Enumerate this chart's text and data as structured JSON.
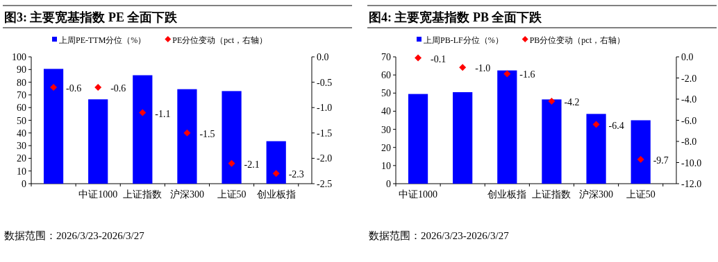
{
  "chart_data": [
    {
      "type": "bar",
      "title": "图3:  主要宽基指数 PE 全面下跌",
      "categories": [
        null,
        "中证1000",
        "上证指数",
        "沪深300",
        "上证50",
        "创业板指"
      ],
      "series": [
        {
          "name": "上周PE-TTM分位（%）",
          "color": "#0000ff",
          "values": [
            90.5,
            66.5,
            85.5,
            74.5,
            73,
            33.5
          ]
        },
        {
          "name": "PE分位变动（pct，右轴）",
          "type": "scatter",
          "axis": "y2",
          "marker": "diamond",
          "color": "#ff0000",
          "values": [
            -0.6,
            -0.6,
            -1.1,
            -1.5,
            -2.1,
            -2.3
          ],
          "value_labels": [
            "-0.6",
            "-0.6",
            "-1.1",
            "-1.5",
            "-2.1",
            "-2.3"
          ]
        }
      ],
      "ylim": [
        0,
        100
      ],
      "yticks": [
        0,
        10,
        20,
        30,
        40,
        50,
        60,
        70,
        80,
        90,
        100
      ],
      "y2lim": [
        -2.5,
        0
      ],
      "y2ticks": [
        {
          "value": 0,
          "label": "0.0"
        },
        {
          "value": -0.5,
          "label": "-0.5"
        },
        {
          "value": -1,
          "label": "-1.0"
        },
        {
          "value": -1.5,
          "label": "-1.5"
        },
        {
          "value": -2,
          "label": "-2.0"
        },
        {
          "value": -2.5,
          "label": "-2.5"
        }
      ],
      "legend": "top",
      "annotations": [
        "数据范围：2026/3/23-2026/3/27"
      ]
    },
    {
      "type": "bar",
      "title": "图4:  主要宽基指数 PB 全面下跌",
      "categories": [
        "中证1000",
        null,
        "创业板指",
        "上证指数",
        "沪深300",
        "上证50"
      ],
      "series": [
        {
          "name": "上周PB-LF分位（%）",
          "color": "#0000ff",
          "values": [
            49.5,
            50.5,
            62.5,
            46.5,
            38.5,
            35
          ]
        },
        {
          "name": "PB分位变动（pct，右轴）",
          "type": "scatter",
          "axis": "y2",
          "marker": "diamond",
          "color": "#ff0000",
          "values": [
            -0.1,
            -1.0,
            -1.6,
            -4.2,
            -6.4,
            -9.7
          ],
          "value_labels": [
            "-0.1",
            "-1.0",
            "-1.6",
            "-4.2",
            "-6.4",
            "-9.7"
          ]
        }
      ],
      "ylim": [
        0,
        70
      ],
      "yticks": [
        0,
        10,
        20,
        30,
        40,
        50,
        60,
        70
      ],
      "y2lim": [
        -12,
        0
      ],
      "y2ticks": [
        {
          "value": 0,
          "label": "0.0"
        },
        {
          "value": -2,
          "label": "-2.0"
        },
        {
          "value": -4,
          "label": "-4.0"
        },
        {
          "value": -6,
          "label": "-6.0"
        },
        {
          "value": -8,
          "label": "-8.0"
        },
        {
          "value": -10,
          "label": "-10.0"
        },
        {
          "value": -12,
          "label": "-12.0"
        }
      ],
      "legend": "top",
      "annotations": [
        "数据范围：2026/3/23-2026/3/27"
      ]
    }
  ]
}
